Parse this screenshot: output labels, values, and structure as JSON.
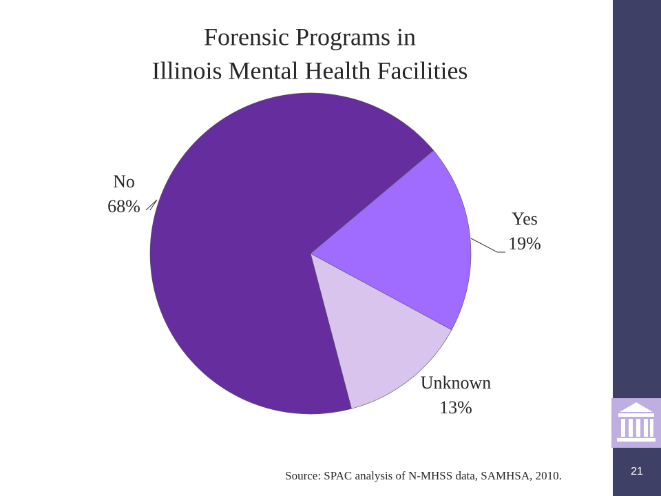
{
  "chart_data": {
    "type": "pie",
    "title": "Forensic Programs in",
    "title_line2": "Illinois Mental Health Facilities",
    "categories": [
      "Yes",
      "Unknown",
      "No"
    ],
    "values": [
      19,
      13,
      68
    ],
    "value_labels": [
      "19%",
      "13%",
      "68%"
    ],
    "colors": [
      "#a06bff",
      "#d8c4ec",
      "#662d9e"
    ],
    "source": "Source: SPAC analysis of N-MHSS data, SAMHSA, 2010."
  },
  "page_number": "21"
}
